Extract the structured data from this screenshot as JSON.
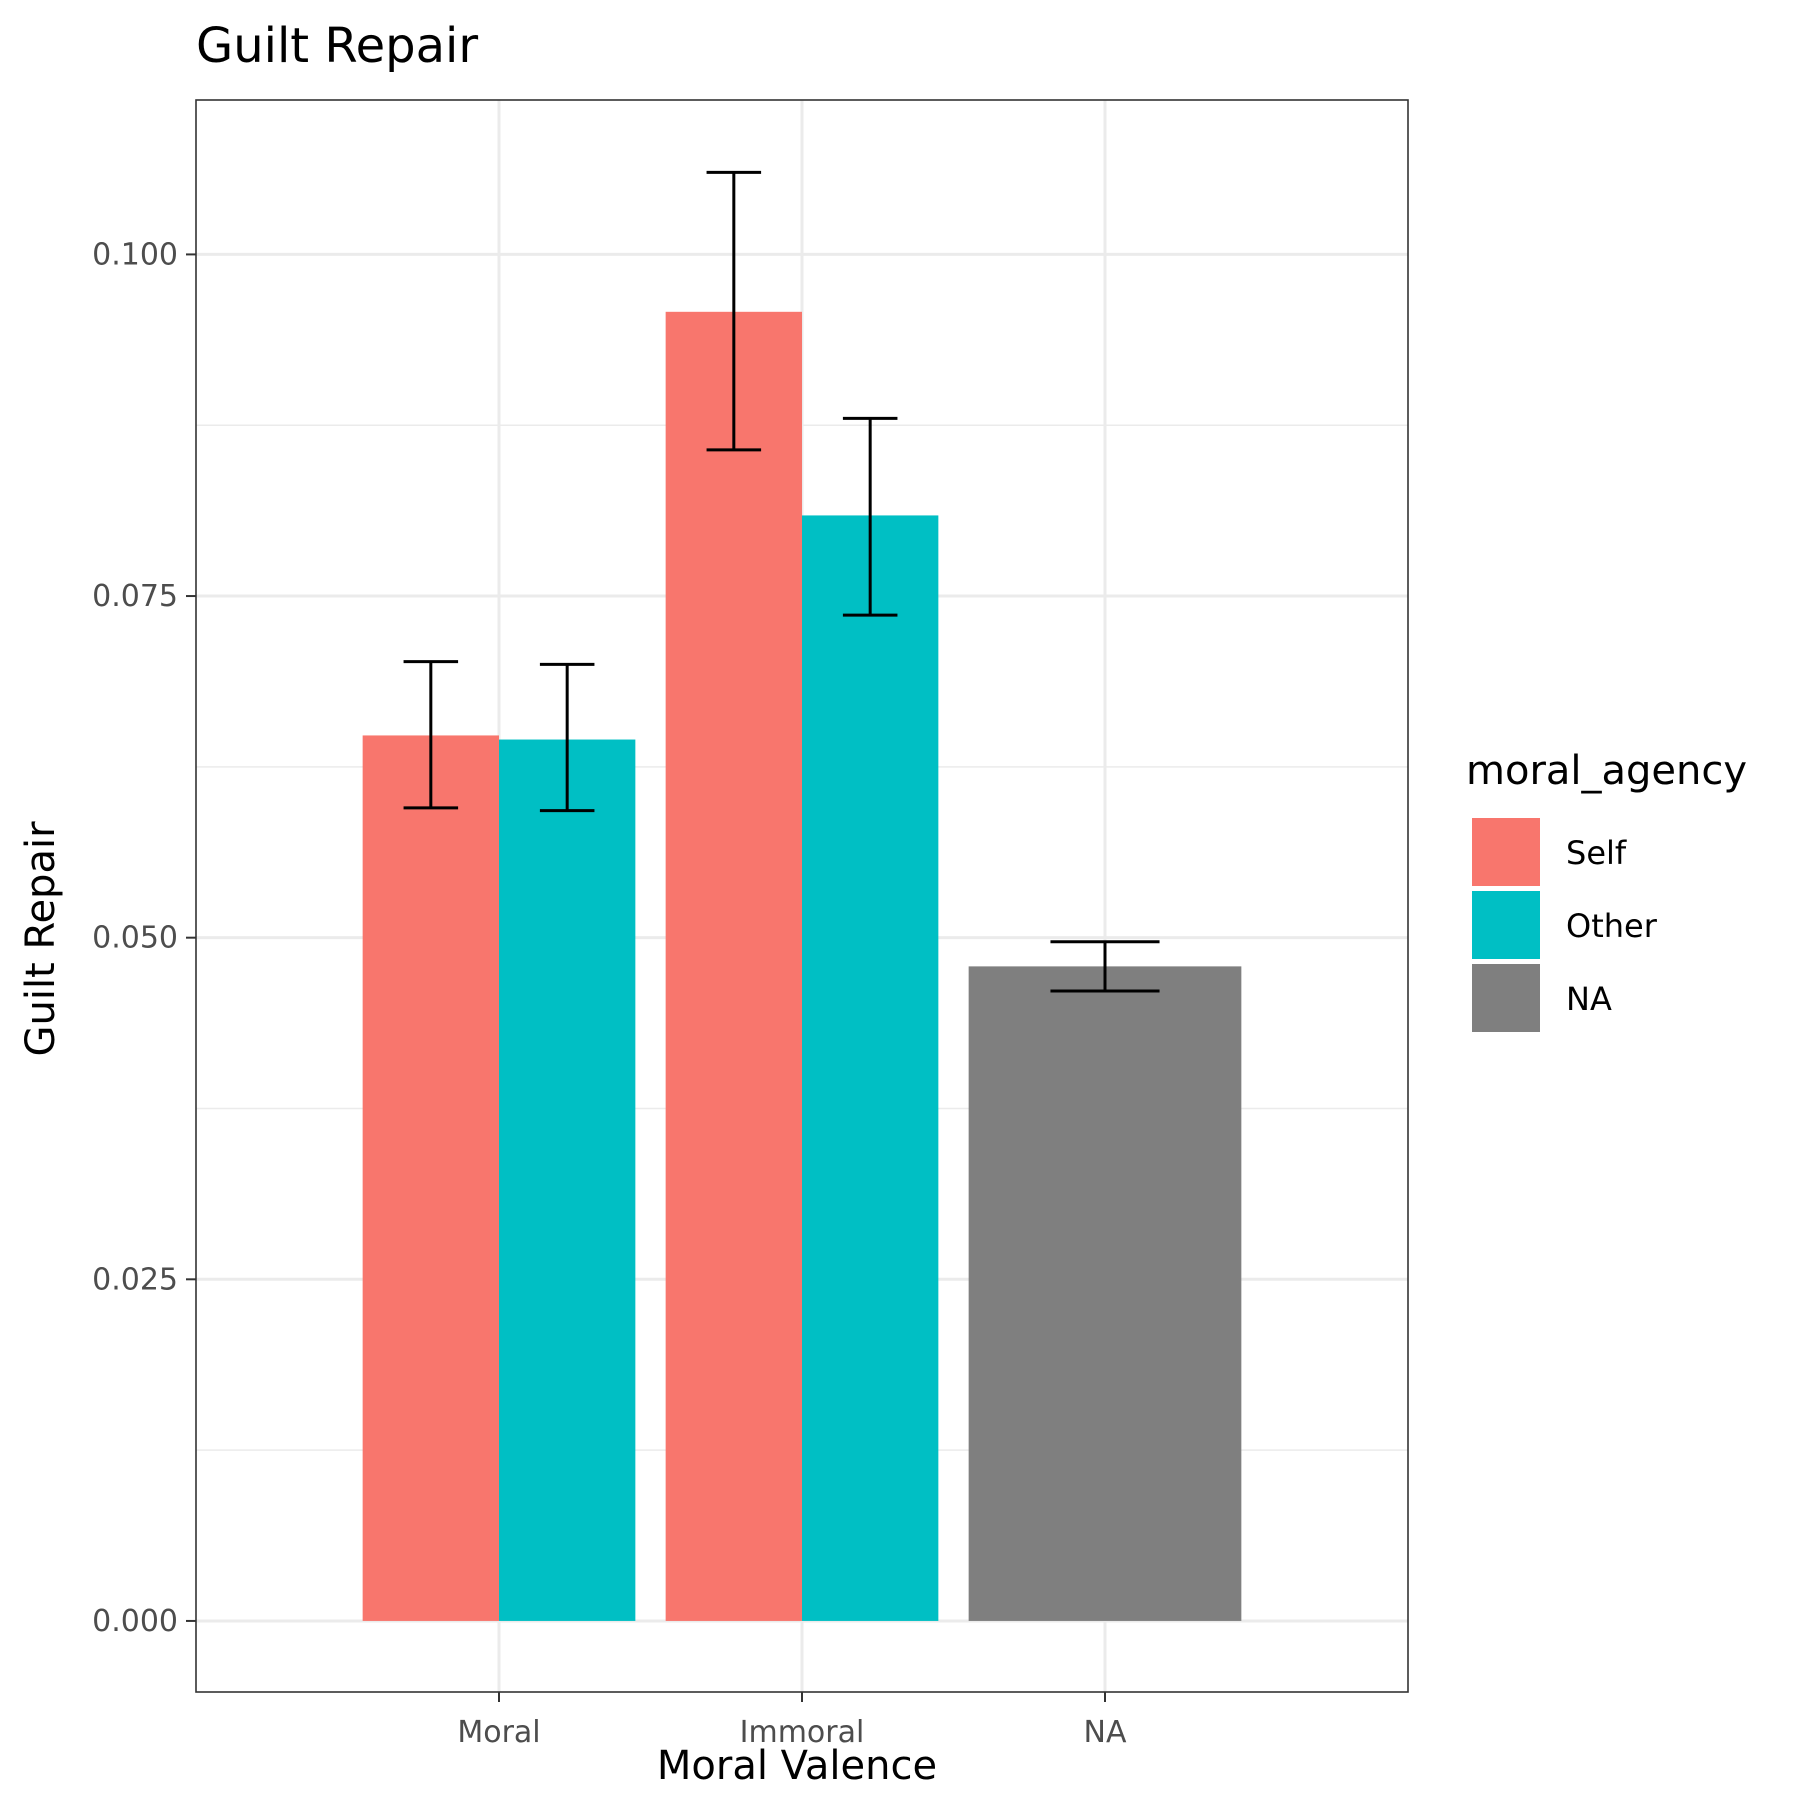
{
  "chart_data": {
    "type": "bar",
    "title": "Guilt Repair",
    "xlabel": "Moral Valence",
    "ylabel": "Guilt Repair",
    "categories": [
      "Moral",
      "Immoral",
      "NA"
    ],
    "ylim": [
      -0.0052,
      0.1113
    ],
    "y_ticks": [
      0.0,
      0.025,
      0.05,
      0.075,
      0.1
    ],
    "y_tick_labels": [
      "0.000",
      "0.025",
      "0.050",
      "0.075",
      "0.100"
    ],
    "grid": true,
    "legend": {
      "title": "moral_agency",
      "position": "right",
      "entries": [
        {
          "label": "Self",
          "color": "#F8766D"
        },
        {
          "label": "Other",
          "color": "#00BFC4"
        },
        {
          "label": "NA",
          "color": "#7F7F7F"
        }
      ]
    },
    "bars": [
      {
        "category": "Moral",
        "group": "Self",
        "value": 0.0648,
        "error_low": 0.0595,
        "error_high": 0.0702
      },
      {
        "category": "Moral",
        "group": "Other",
        "value": 0.0645,
        "error_low": 0.0593,
        "error_high": 0.07
      },
      {
        "category": "Immoral",
        "group": "Self",
        "value": 0.0958,
        "error_low": 0.0857,
        "error_high": 0.106
      },
      {
        "category": "Immoral",
        "group": "Other",
        "value": 0.0809,
        "error_low": 0.0736,
        "error_high": 0.088
      },
      {
        "category": "NA",
        "group": "NA",
        "value": 0.0479,
        "error_low": 0.0461,
        "error_high": 0.0497
      }
    ]
  }
}
